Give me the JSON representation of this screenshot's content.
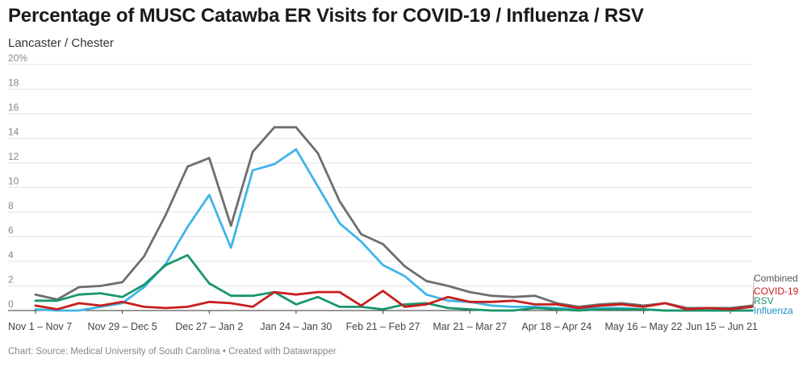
{
  "title": "Percentage of MUSC Catawba ER Visits for COVID-19 / Influenza / RSV",
  "subtitle": "Lancaster / Chester",
  "footer": "Chart: Source: Medical University of South Carolina • Created with Datawrapper",
  "chart_data": {
    "type": "line",
    "title": "Percentage of MUSC Catawba ER Visits for COVID-19 / Influenza / RSV",
    "subtitle": "Lancaster / Chester",
    "y_ticks": [
      "0",
      "2",
      "4",
      "6",
      "8",
      "10",
      "12",
      "14",
      "16",
      "18",
      "20%"
    ],
    "ylim": [
      0,
      20
    ],
    "grid": true,
    "x_tick_labels": [
      {
        "index": 0,
        "label": "Nov 1 – Nov 7"
      },
      {
        "index": 4,
        "label": "Nov 29 – Dec 5"
      },
      {
        "index": 8,
        "label": "Dec 27 – Jan 2"
      },
      {
        "index": 12,
        "label": "Jan 24 – Jan 30"
      },
      {
        "index": 16,
        "label": "Feb 21 – Feb 27"
      },
      {
        "index": 20,
        "label": "Mar 21 – Mar 27"
      },
      {
        "index": 24,
        "label": "Apr 18 – Apr 24"
      },
      {
        "index": 28,
        "label": "May 16 – May 22"
      },
      {
        "index": 32,
        "label": "Jun 15 – Jun 21"
      }
    ],
    "series": [
      {
        "name": "Combined",
        "color": "#6e6e6e",
        "values": [
          1.3,
          0.9,
          1.9,
          2.0,
          2.3,
          4.4,
          7.8,
          11.7,
          12.4,
          6.9,
          12.9,
          14.9,
          14.9,
          12.8,
          8.9,
          6.2,
          5.4,
          3.6,
          2.4,
          2.0,
          1.5,
          1.2,
          1.1,
          1.2,
          0.6,
          0.3,
          0.5,
          0.6,
          0.4,
          0.6,
          0.2,
          0.2,
          0.2,
          0.4
        ]
      },
      {
        "name": "Influenza",
        "color": "#3fb5e8",
        "values": [
          0.1,
          0.0,
          0.0,
          0.3,
          0.6,
          1.9,
          3.8,
          6.8,
          9.4,
          5.1,
          11.4,
          11.9,
          13.1,
          10.1,
          7.1,
          5.6,
          3.7,
          2.8,
          1.3,
          0.8,
          0.7,
          0.4,
          0.3,
          0.3,
          0.2,
          0.1,
          0.2,
          0.2,
          0.1,
          0.0,
          0.0,
          0.0,
          0.0,
          0.0
        ]
      },
      {
        "name": "RSV",
        "color": "#19966a",
        "values": [
          0.8,
          0.8,
          1.3,
          1.4,
          1.1,
          2.1,
          3.7,
          4.5,
          2.2,
          1.2,
          1.2,
          1.5,
          0.5,
          1.1,
          0.3,
          0.3,
          0.1,
          0.5,
          0.6,
          0.2,
          0.1,
          0.0,
          0.0,
          0.2,
          0.1,
          0.0,
          0.1,
          0.1,
          0.1,
          0.0,
          0.0,
          0.0,
          0.0,
          0.0
        ]
      },
      {
        "name": "COVID-19",
        "color": "#c71e1d",
        "values": [
          0.4,
          0.1,
          0.6,
          0.4,
          0.7,
          0.3,
          0.2,
          0.3,
          0.7,
          0.6,
          0.3,
          1.5,
          1.3,
          1.5,
          1.5,
          0.4,
          1.6,
          0.3,
          0.5,
          1.1,
          0.7,
          0.7,
          0.8,
          0.5,
          0.5,
          0.2,
          0.4,
          0.5,
          0.3,
          0.6,
          0.1,
          0.2,
          0.1,
          0.3
        ]
      }
    ]
  }
}
